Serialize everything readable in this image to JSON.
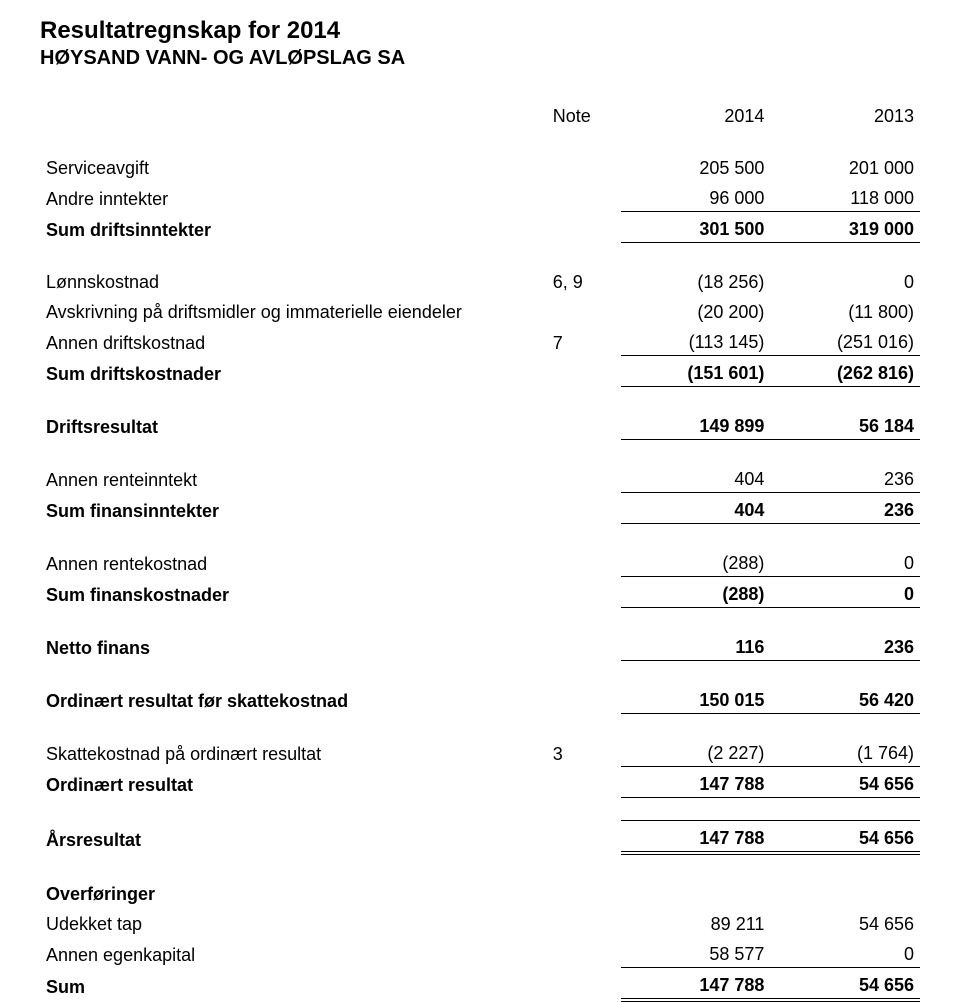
{
  "header": {
    "title": "Resultatregnskap for 2014",
    "subtitle": "HØYSAND VANN- OG AVLØPSLAG SA"
  },
  "columns": {
    "note": "Note",
    "year1": "2014",
    "year2": "2013"
  },
  "rows": {
    "serviceavgift": {
      "label": "Serviceavgift",
      "y1": "205 500",
      "y2": "201 000"
    },
    "andre_inntekter": {
      "label": "Andre inntekter",
      "y1": "96 000",
      "y2": "118 000"
    },
    "sum_driftsinntekter": {
      "label": "Sum driftsinntekter",
      "y1": "301 500",
      "y2": "319 000"
    },
    "lonnskostnad": {
      "label": "Lønnskostnad",
      "note": "6, 9",
      "y1": "(18 256)",
      "y2": "0"
    },
    "avskrivning": {
      "label": "Avskrivning på driftsmidler og immaterielle eiendeler",
      "y1": "(20 200)",
      "y2": "(11 800)"
    },
    "annen_driftskostnad": {
      "label": "Annen driftskostnad",
      "note": "7",
      "y1": "(113 145)",
      "y2": "(251 016)"
    },
    "sum_driftskostnader": {
      "label": "Sum driftskostnader",
      "y1": "(151 601)",
      "y2": "(262 816)"
    },
    "driftsresultat": {
      "label": "Driftsresultat",
      "y1": "149 899",
      "y2": "56 184"
    },
    "annen_renteinntekt": {
      "label": "Annen renteinntekt",
      "y1": "404",
      "y2": "236"
    },
    "sum_finansinntekter": {
      "label": "Sum finansinntekter",
      "y1": "404",
      "y2": "236"
    },
    "annen_rentekostnad": {
      "label": "Annen rentekostnad",
      "y1": "(288)",
      "y2": "0"
    },
    "sum_finanskostnader": {
      "label": "Sum finanskostnader",
      "y1": "(288)",
      "y2": "0"
    },
    "netto_finans": {
      "label": "Netto finans",
      "y1": "116",
      "y2": "236"
    },
    "ord_res_for_skatt": {
      "label": "Ordinært resultat før skattekostnad",
      "y1": "150 015",
      "y2": "56 420"
    },
    "skattekostnad": {
      "label": "Skattekostnad på ordinært resultat",
      "note": "3",
      "y1": "(2 227)",
      "y2": "(1 764)"
    },
    "ordinert_resultat": {
      "label": "Ordinært resultat",
      "y1": "147 788",
      "y2": "54 656"
    },
    "arsresultat": {
      "label": "Årsresultat",
      "y1": "147 788",
      "y2": "54 656"
    },
    "overforinger": {
      "label": "Overføringer"
    },
    "udekket_tap": {
      "label": "Udekket tap",
      "y1": "89 211",
      "y2": "54 656"
    },
    "annen_egenkapital": {
      "label": "Annen egenkapital",
      "y1": "58 577",
      "y2": "0"
    },
    "sum": {
      "label": "Sum",
      "y1": "147 788",
      "y2": "54 656"
    }
  }
}
